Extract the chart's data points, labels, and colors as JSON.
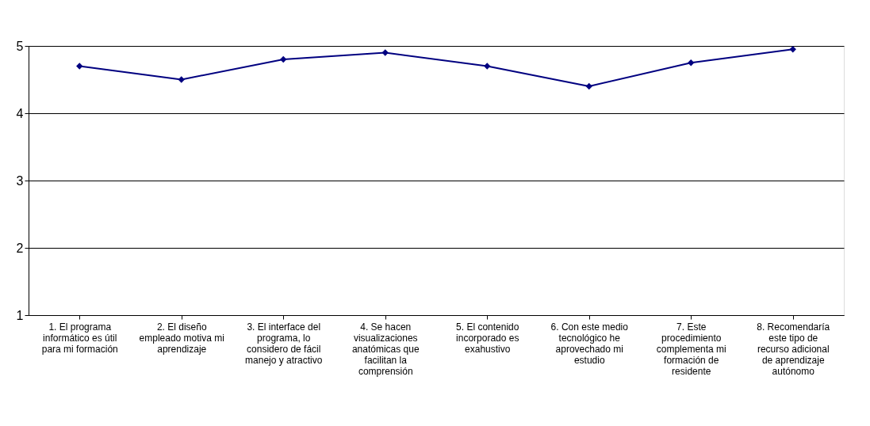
{
  "chart_data": {
    "type": "line",
    "categories": [
      "1. El programa informático es útil para mi formación",
      "2. El diseño empleado motiva mi aprendizaje",
      "3. El interface del programa, lo considero de fácil manejo y atractivo",
      "4. Se hacen visualizaciones anatómicas que facilitan la comprensión",
      "5. El contenido incorporado es exahustivo",
      "6. Con este medio tecnológico he aprovechado mi estudio",
      "7. Este procedimiento complementa mi formación de residente",
      "8. Recomendaría este tipo de recurso adicional de aprendizaje autónomo"
    ],
    "series": [
      {
        "color": "#000080",
        "values": [
          4.7,
          4.5,
          4.8,
          4.9,
          4.7,
          4.4,
          4.75,
          4.95
        ]
      }
    ],
    "ylim": [
      1,
      5
    ],
    "yticks": [
      1,
      2,
      3,
      4,
      5
    ],
    "grid": "y",
    "marker": "diamond",
    "line_style": "solid"
  }
}
